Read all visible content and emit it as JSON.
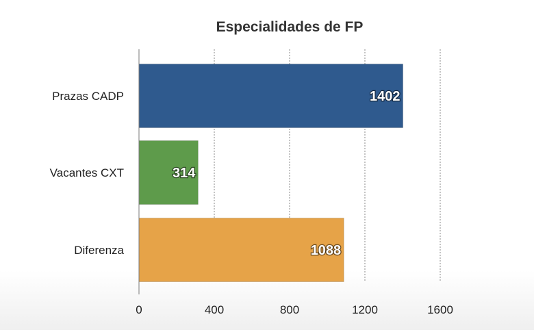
{
  "chart_data": {
    "type": "bar",
    "orientation": "horizontal",
    "title": "Especialidades de FP",
    "categories": [
      "Prazas CADP",
      "Vacantes CXT",
      "Diferenza"
    ],
    "values": [
      1402,
      314,
      1088
    ],
    "colors": [
      "#2f5a8e",
      "#5e9b4b",
      "#e6a348"
    ],
    "xlim": [
      0,
      1600
    ],
    "xticks": [
      0,
      400,
      800,
      1200,
      1600
    ],
    "grid": true,
    "data_labels": true
  }
}
